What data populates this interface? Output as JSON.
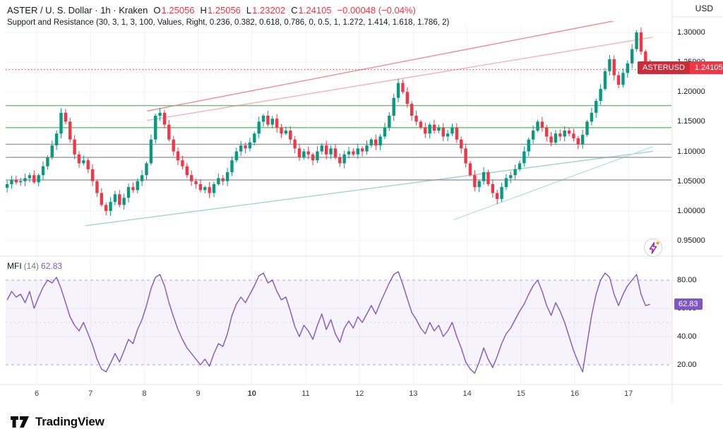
{
  "header": {
    "title": "ASTER / U. S. Dollar · 1h · Kraken",
    "ohlc": {
      "open_label": "O",
      "open": "1.25056",
      "high_label": "H",
      "high": "1.25056",
      "low_label": "L",
      "low": "1.23202",
      "close_label": "C",
      "close": "1.24105",
      "change": "−0.00048 (−0.04%)"
    },
    "indicator_legend": "Support and Resistance (30, 3, 1, 3, 100, Values, Right, 0.236, 0.382, 0.618, 0.786, 0, 0.5, 1, 1.272, 1.414, 1.618, 1.786, 2)",
    "currency": "USD"
  },
  "price_scale": {
    "labels": [
      "1.30000",
      "1.25000",
      "1.20000",
      "1.15000",
      "1.10000",
      "1.05000",
      "1.00000",
      "0.95000"
    ],
    "values": [
      1.3,
      1.25,
      1.2,
      1.15,
      1.1,
      1.05,
      1.0,
      0.95
    ]
  },
  "last_price_badge": {
    "symbol": "ASTERUSD",
    "value": "1.24105",
    "color": "#f23645"
  },
  "mfi_pane": {
    "label": "MFI",
    "params": "(14)",
    "value": "62.83",
    "scale_labels": [
      "80.00",
      "60.00",
      "40.00",
      "20.00"
    ],
    "scale_values": [
      80,
      60,
      40,
      20
    ],
    "badge_color": "#7e57c2"
  },
  "time_scale": {
    "labels": [
      "6",
      "7",
      "8",
      "9",
      "10",
      "11",
      "12",
      "13",
      "14",
      "15",
      "16",
      "17"
    ],
    "days": [
      6,
      7,
      8,
      9,
      10,
      11,
      12,
      13,
      14,
      15,
      16,
      17
    ],
    "bold_label": "10"
  },
  "footer": {
    "brand": "TradingView"
  },
  "icons": {
    "flash": "lightning-bolt",
    "logo": "tradingview-mark"
  },
  "chart_data": {
    "type": "candlestick",
    "title": "ASTER / U. S. Dollar 1h Kraken with Support and Resistance + MFI",
    "symbol": "ASTERUSD",
    "timeframe": "1h",
    "x_range_days": [
      5.45,
      17.4
    ],
    "price_range": [
      0.93,
      1.315
    ],
    "grid": true,
    "candles": {
      "start_day": 5.45,
      "end_day": 17.4,
      "up_color": "#089981",
      "down_color": "#f23645",
      "closes": [
        1.045,
        1.052,
        1.048,
        1.05,
        1.055,
        1.06,
        1.048,
        1.06,
        1.075,
        1.09,
        1.11,
        1.13,
        1.165,
        1.15,
        1.12,
        1.095,
        1.08,
        1.085,
        1.07,
        1.05,
        1.03,
        1.01,
        1.0,
        1.015,
        1.028,
        1.01,
        1.022,
        1.04,
        1.035,
        1.05,
        1.06,
        1.08,
        1.12,
        1.16,
        1.165,
        1.145,
        1.12,
        1.1,
        1.085,
        1.075,
        1.06,
        1.05,
        1.045,
        1.035,
        1.04,
        1.03,
        1.045,
        1.055,
        1.05,
        1.065,
        1.085,
        1.1,
        1.11,
        1.105,
        1.115,
        1.13,
        1.15,
        1.16,
        1.145,
        1.155,
        1.14,
        1.13,
        1.135,
        1.12,
        1.105,
        1.09,
        1.1,
        1.095,
        1.085,
        1.1,
        1.11,
        1.095,
        1.105,
        1.09,
        1.08,
        1.095,
        1.1,
        1.095,
        1.105,
        1.1,
        1.11,
        1.12,
        1.11,
        1.125,
        1.14,
        1.16,
        1.19,
        1.215,
        1.2,
        1.18,
        1.16,
        1.15,
        1.14,
        1.13,
        1.145,
        1.135,
        1.14,
        1.125,
        1.13,
        1.14,
        1.12,
        1.105,
        1.08,
        1.06,
        1.04,
        1.05,
        1.065,
        1.045,
        1.03,
        1.02,
        1.04,
        1.055,
        1.06,
        1.07,
        1.08,
        1.1,
        1.12,
        1.135,
        1.15,
        1.14,
        1.125,
        1.115,
        1.13,
        1.125,
        1.135,
        1.13,
        1.122,
        1.112,
        1.128,
        1.15,
        1.165,
        1.185,
        1.205,
        1.235,
        1.255,
        1.228,
        1.212,
        1.232,
        1.248,
        1.272,
        1.3,
        1.268,
        1.246,
        1.241
      ]
    },
    "levels": [
      {
        "price": 1.2375,
        "color": "#f23645",
        "style": "dotted",
        "width": 1
      },
      {
        "price": 1.177,
        "color": "#71c175",
        "style": "solid",
        "width": 1.5
      },
      {
        "price": 1.14,
        "color": "#71c175",
        "style": "solid",
        "width": 1.5
      },
      {
        "price": 1.112,
        "color": "#8a8d98",
        "style": "solid",
        "width": 1.2
      },
      {
        "price": 1.09,
        "color": "#8a8d98",
        "style": "solid",
        "width": 1.2
      },
      {
        "price": 1.052,
        "color": "#8a8d98",
        "style": "solid",
        "width": 1.2
      }
    ],
    "trendlines": [
      {
        "d1": 8.05,
        "p1": 1.168,
        "d2": 17.45,
        "p2": 1.332,
        "color": "#f48a8f"
      },
      {
        "d1": 8.05,
        "p1": 1.152,
        "d2": 17.45,
        "p2": 1.292,
        "color": "#f7b2b5"
      },
      {
        "d1": 6.9,
        "p1": 0.975,
        "d2": 17.45,
        "p2": 1.1,
        "color": "#9fd8c0"
      },
      {
        "d1": 13.75,
        "p1": 0.985,
        "d2": 17.45,
        "p2": 1.108,
        "color": "#bce4d2"
      }
    ],
    "mfi": {
      "type": "line",
      "color": "#7e57c2",
      "range": [
        0,
        100
      ],
      "bands": [
        20,
        80
      ],
      "middle": 50,
      "current": 62.83,
      "values": [
        66,
        72,
        68,
        70,
        64,
        72,
        60,
        68,
        75,
        80,
        78,
        82,
        74,
        64,
        54,
        48,
        44,
        50,
        42,
        34,
        24,
        17,
        15,
        21,
        28,
        22,
        30,
        38,
        35,
        45,
        52,
        62,
        74,
        82,
        84,
        76,
        64,
        54,
        45,
        38,
        32,
        28,
        24,
        20,
        24,
        19,
        28,
        35,
        33,
        42,
        55,
        63,
        68,
        64,
        70,
        76,
        83,
        85,
        78,
        80,
        72,
        66,
        68,
        58,
        47,
        40,
        48,
        44,
        38,
        48,
        56,
        45,
        52,
        42,
        36,
        46,
        51,
        46,
        54,
        50,
        56,
        62,
        56,
        64,
        71,
        78,
        84,
        86,
        77,
        67,
        57,
        52,
        46,
        42,
        50,
        44,
        48,
        40,
        44,
        50,
        40,
        32,
        22,
        17,
        14,
        22,
        32,
        24,
        18,
        26,
        35,
        42,
        46,
        52,
        58,
        63,
        70,
        76,
        80,
        72,
        62,
        55,
        64,
        58,
        50,
        40,
        30,
        22,
        15,
        35,
        55,
        70,
        80,
        85,
        82,
        70,
        62,
        70,
        76,
        80,
        84,
        70,
        62,
        62.83
      ]
    }
  }
}
